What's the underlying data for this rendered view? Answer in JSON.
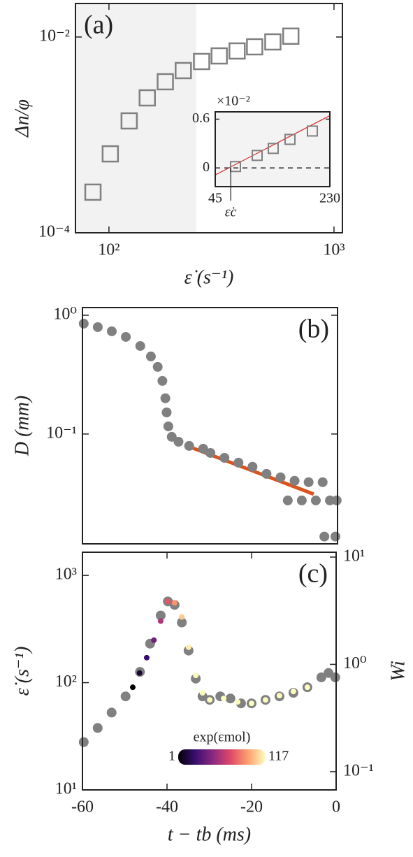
{
  "chart_data": [
    {
      "type": "scatter",
      "annotation": "(a)",
      "xlabel": "ε̇ (s⁻¹)",
      "ylabel": "Δn/φ",
      "xscale": "log",
      "yscale": "log",
      "xlim": [
        71,
        1090
      ],
      "ylim": [
        0.0001,
        0.022
      ],
      "xticks": [
        {
          "value": 100,
          "label": "10²"
        },
        {
          "value": 1000,
          "label": "10³"
        }
      ],
      "yticks": [
        {
          "value": 0.0001,
          "label": "10⁻⁴"
        },
        {
          "value": 0.01,
          "label": "10⁻²"
        }
      ],
      "shaded_xrange": [
        71,
        244
      ],
      "marker": "square",
      "series": [
        {
          "color": "#808080",
          "x": [
            84.9,
            101.4,
            123,
            148,
            178,
            214,
            258,
            309,
            371,
            444,
            535,
            643
          ],
          "values": [
            0.00026,
            0.00064,
            0.00139,
            0.00239,
            0.00349,
            0.00454,
            0.00562,
            0.00641,
            0.0072,
            0.00794,
            0.00891,
            0.0102
          ]
        }
      ]
    },
    {
      "type": "scatter",
      "multiplier": "×10⁻²",
      "xlim": [
        45,
        230
      ],
      "ylim": [
        -0.23,
        0.69
      ],
      "xticks": [
        45,
        230
      ],
      "yticks": [
        0,
        0.6
      ],
      "marker": "square",
      "reference_y": 0,
      "threshold": {
        "x": 70,
        "label": "ε̇c"
      },
      "fit": {
        "color": "#d62728",
        "x": [
          45,
          230
        ],
        "values": [
          -0.086,
          0.643
        ]
      },
      "series": [
        {
          "color": "#808080",
          "x": [
            77.7,
            112.7,
            138.6,
            165.7,
            201.8
          ],
          "values": [
            0.017,
            0.154,
            0.24,
            0.351,
            0.454
          ]
        }
      ]
    },
    {
      "type": "scatter",
      "annotation": "(b)",
      "ylabel": "D (mm)",
      "yscale": "log",
      "xlim": [
        -60,
        0
      ],
      "ylim": [
        0.0119,
        1.16
      ],
      "yticks": [
        {
          "value": 1,
          "label": "10⁰"
        },
        {
          "value": 0.1,
          "label": "10⁻¹"
        }
      ],
      "marker": "circle",
      "fit": {
        "color": "#d9541e",
        "x": [
          -34.5,
          -5.6
        ],
        "values": [
          0.0773,
          0.0312
        ]
      },
      "series": [
        {
          "color": "#808080",
          "x": [
            -59.7,
            -56.4,
            -53.1,
            -49.8,
            -46.4,
            -43.9,
            -42.3,
            -41.2,
            -40.5,
            -40.2,
            -39.8,
            -39,
            -37.4,
            -34.9,
            -31.6,
            -29.9,
            -26.6,
            -23.3,
            -20,
            -16.7,
            -13.4,
            -10.1,
            -6.8,
            -3.5,
            -11.7,
            -8.4,
            -5.1,
            -1.8,
            -0.2,
            -3.1,
            -0.5
          ],
          "values": [
            0.85,
            0.794,
            0.732,
            0.657,
            0.551,
            0.45,
            0.367,
            0.28,
            0.2,
            0.152,
            0.116,
            0.0947,
            0.0861,
            0.0794,
            0.0752,
            0.0693,
            0.063,
            0.0574,
            0.053,
            0.0462,
            0.0432,
            0.0404,
            0.0393,
            0.0393,
            0.0276,
            0.0276,
            0.0276,
            0.0276,
            0.0276,
            0.0137,
            0.0137
          ]
        }
      ]
    },
    {
      "type": "scatter",
      "annotation": "(c)",
      "xlabel": "t − tb (ms)",
      "ylabel": "ε̇ (s⁻¹)",
      "y2label": "Wi",
      "yscale": "log",
      "xlim": [
        -60,
        0
      ],
      "ylim": [
        10,
        1645
      ],
      "y2lim": [
        0.0676,
        11.1
      ],
      "xticks": [
        -60,
        -40,
        -20,
        0
      ],
      "yticks": [
        {
          "value": 10,
          "label": "10¹"
        },
        {
          "value": 100,
          "label": "10²"
        },
        {
          "value": 1000,
          "label": "10³"
        }
      ],
      "y2ticks": [
        {
          "value": 0.1,
          "label": "10⁻¹"
        },
        {
          "value": 1,
          "label": "10⁰"
        },
        {
          "value": 10,
          "label": "10¹"
        }
      ],
      "marker": "circle",
      "colorbar": {
        "label": "exp(εmol)",
        "clim": [
          1,
          117
        ],
        "ticks": [
          1,
          117
        ],
        "scale": "log",
        "colormap": [
          "#000004",
          "#3b0f70",
          "#8c2981",
          "#de4968",
          "#fe9f6d",
          "#fcfdbf"
        ]
      },
      "series": [
        {
          "color": "#808080",
          "x": [
            -59.7,
            -56.4,
            -53.1,
            -49.8,
            -46.4,
            -44,
            -41.5,
            -39.8,
            -38.2,
            -36.5,
            -34.9,
            -33.2,
            -31.6,
            -29.9,
            -27.4,
            -25,
            -22.5,
            -20,
            -16.7,
            -13.4,
            -10.1,
            -6.8,
            -3.5,
            -1.8,
            -0.2
          ],
          "values": [
            27.9,
            37.8,
            52.6,
            74.5,
            126,
            231,
            423,
            572,
            531,
            364,
            199,
            109,
            74.5,
            69.1,
            74.5,
            71.2,
            64.1,
            64.1,
            69.1,
            74.5,
            80.4,
            90.6,
            112,
            123,
            112
          ]
        },
        {
          "x": [
            -48.1,
            -46.5,
            -44.8,
            -43.1,
            -41.5,
            -39.8,
            -38.2,
            -36.5,
            -34.9,
            -33.2,
            -31.6,
            -29.9,
            -26.6,
            -23.3,
            -20,
            -16.7,
            -13.4,
            -10.1,
            -6.8
          ],
          "values": [
            90.6,
            123,
            171,
            249,
            375,
            572,
            555,
            410,
            214,
            117,
            80.4,
            69.1,
            71.2,
            66.1,
            64.1,
            69.1,
            75.7,
            82.8,
            90.6
          ],
          "color_values": [
            1,
            1.5,
            2.5,
            5,
            10,
            20,
            40,
            70,
            100,
            110,
            113,
            115,
            116,
            117,
            117,
            117,
            117,
            117,
            117
          ]
        }
      ]
    }
  ]
}
